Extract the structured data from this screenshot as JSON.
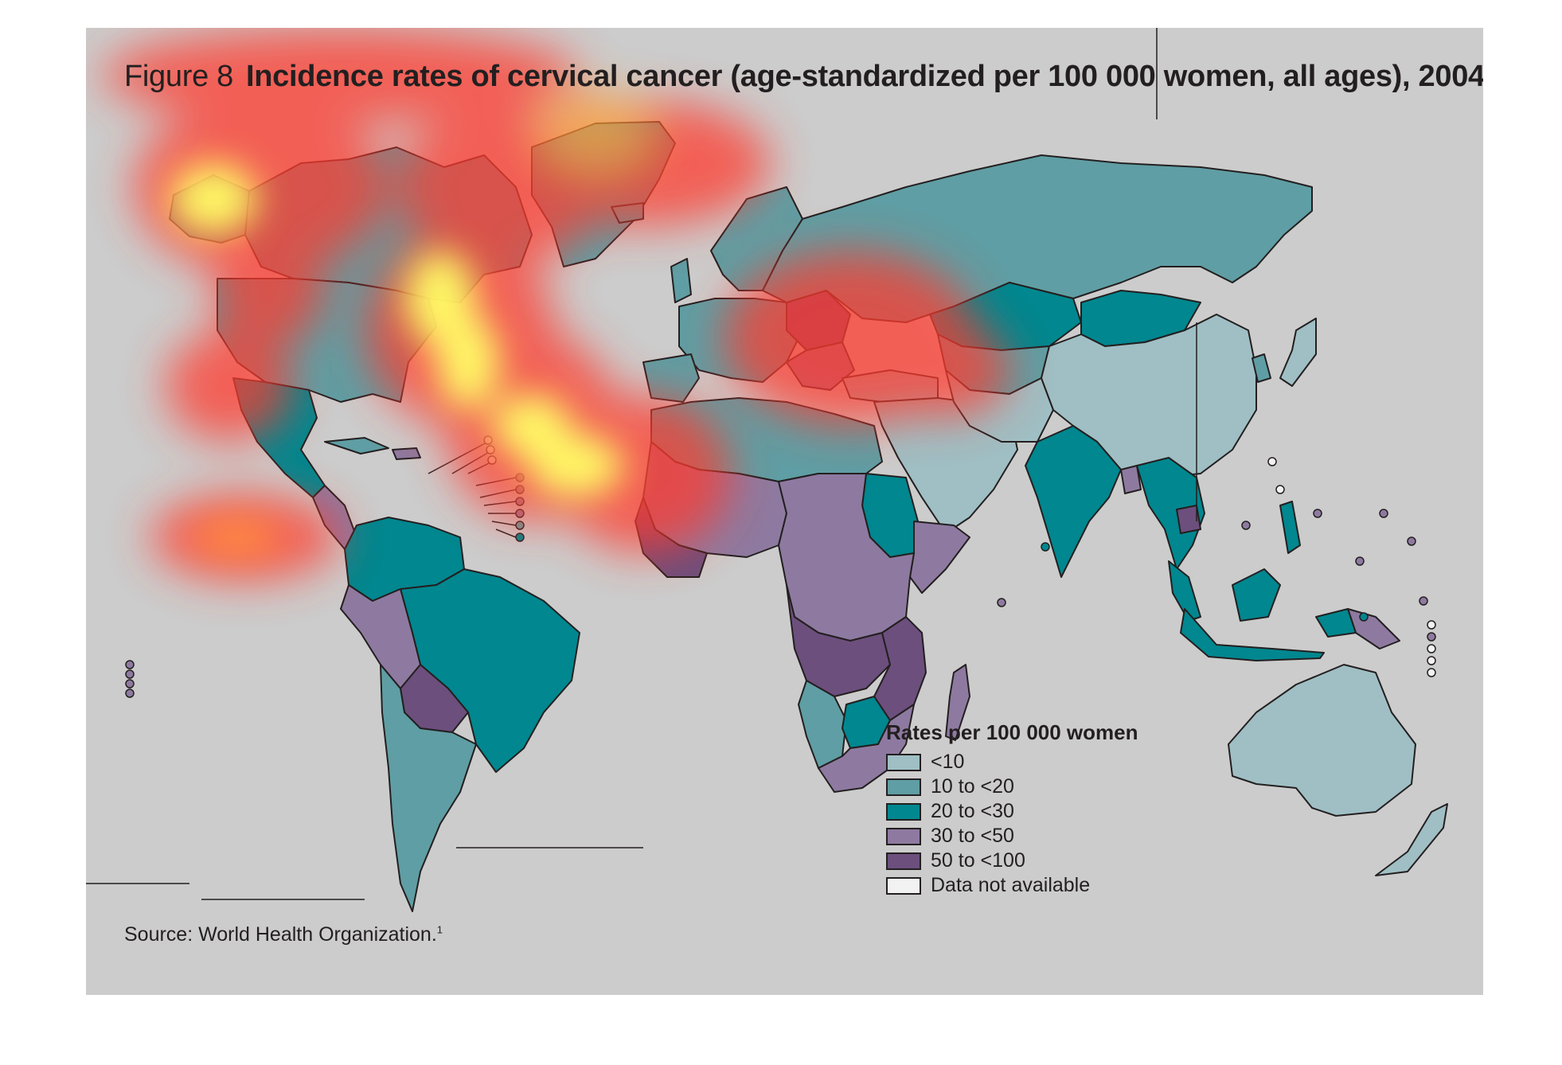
{
  "figure": {
    "number_label": "Figure 8",
    "title": "Incidence rates of cervical cancer (age-standardized per 100 000 women, all ages), 2004"
  },
  "legend": {
    "title": "Rates per 100 000 women",
    "items": [
      {
        "label": "<10",
        "color": "#9fbfc4"
      },
      {
        "label": "10 to <20",
        "color": "#5f9ea4"
      },
      {
        "label": "20 to <30",
        "color": "#00878f"
      },
      {
        "label": "30 to <50",
        "color": "#8e7aa0"
      },
      {
        "label": "50 to <100",
        "color": "#6c4f7d"
      },
      {
        "label": "Data not available",
        "color": "#f2f2f2"
      }
    ]
  },
  "source": {
    "text": "Source: World Health Organization.",
    "footnote": "1"
  },
  "colors": {
    "background": "#cccccc",
    "outline": "#231f20",
    "heat_hot": "#ffff66",
    "heat_warm": "#ff3b2e"
  }
}
